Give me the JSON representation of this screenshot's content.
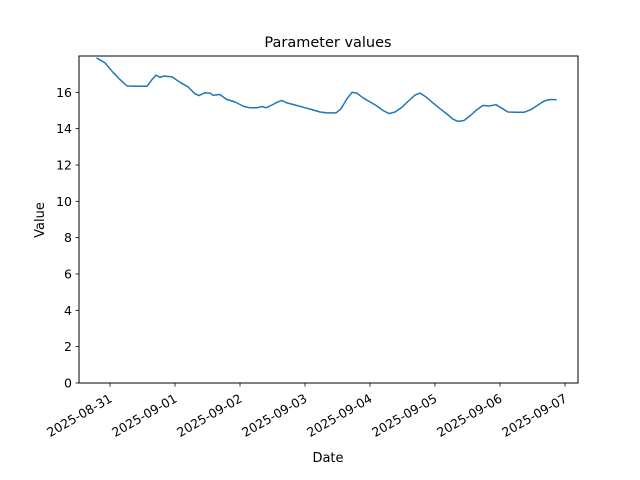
{
  "figure": {
    "background": "#ffffff",
    "axes_facecolor": "#ffffff",
    "spine_color": "#000000"
  },
  "chart_data": {
    "type": "line",
    "title": "Parameter values",
    "xlabel": "Date",
    "ylabel": "Value",
    "line_color": "#1f77b4",
    "grid": false,
    "legend_position": "none",
    "x_tick_labels": [
      "2025-08-31",
      "2025-09-01",
      "2025-09-02",
      "2025-09-03",
      "2025-09-04",
      "2025-09-05",
      "2025-09-06",
      "2025-09-07"
    ],
    "x_tick_rotation_deg": 30,
    "y_ticks": [
      0,
      2,
      4,
      6,
      8,
      10,
      12,
      14,
      16
    ],
    "ylim": [
      0,
      18
    ],
    "xlim_days": [
      -0.477,
      7.2
    ],
    "series": [
      {
        "name": "Parameter values",
        "x_unit": "days since 2025-08-31",
        "points": [
          [
            -0.2,
            17.88
          ],
          [
            -0.077,
            17.62
          ],
          [
            0.046,
            17.1
          ],
          [
            0.154,
            16.7
          ],
          [
            0.262,
            16.35
          ],
          [
            0.385,
            16.33
          ],
          [
            0.569,
            16.33
          ],
          [
            0.646,
            16.7
          ],
          [
            0.708,
            16.95
          ],
          [
            0.769,
            16.82
          ],
          [
            0.831,
            16.9
          ],
          [
            0.954,
            16.85
          ],
          [
            1.077,
            16.55
          ],
          [
            1.2,
            16.3
          ],
          [
            1.308,
            15.92
          ],
          [
            1.369,
            15.82
          ],
          [
            1.462,
            15.98
          ],
          [
            1.538,
            15.96
          ],
          [
            1.585,
            15.84
          ],
          [
            1.692,
            15.88
          ],
          [
            1.785,
            15.63
          ],
          [
            1.923,
            15.47
          ],
          [
            2.062,
            15.22
          ],
          [
            2.154,
            15.15
          ],
          [
            2.262,
            15.15
          ],
          [
            2.338,
            15.22
          ],
          [
            2.4,
            15.15
          ],
          [
            2.492,
            15.3
          ],
          [
            2.585,
            15.48
          ],
          [
            2.646,
            15.55
          ],
          [
            2.723,
            15.42
          ],
          [
            2.846,
            15.3
          ],
          [
            2.969,
            15.18
          ],
          [
            3.108,
            15.05
          ],
          [
            3.231,
            14.92
          ],
          [
            3.338,
            14.87
          ],
          [
            3.477,
            14.87
          ],
          [
            3.554,
            15.1
          ],
          [
            3.646,
            15.65
          ],
          [
            3.723,
            16.0
          ],
          [
            3.8,
            15.95
          ],
          [
            3.892,
            15.7
          ],
          [
            3.985,
            15.5
          ],
          [
            4.092,
            15.28
          ],
          [
            4.2,
            15.0
          ],
          [
            4.292,
            14.83
          ],
          [
            4.385,
            14.92
          ],
          [
            4.492,
            15.18
          ],
          [
            4.6,
            15.55
          ],
          [
            4.692,
            15.85
          ],
          [
            4.769,
            15.96
          ],
          [
            4.862,
            15.75
          ],
          [
            4.969,
            15.42
          ],
          [
            5.077,
            15.1
          ],
          [
            5.185,
            14.8
          ],
          [
            5.277,
            14.52
          ],
          [
            5.354,
            14.4
          ],
          [
            5.446,
            14.45
          ],
          [
            5.554,
            14.75
          ],
          [
            5.646,
            15.05
          ],
          [
            5.738,
            15.28
          ],
          [
            5.831,
            15.25
          ],
          [
            5.938,
            15.32
          ],
          [
            6.031,
            15.12
          ],
          [
            6.123,
            14.92
          ],
          [
            6.246,
            14.9
          ],
          [
            6.369,
            14.9
          ],
          [
            6.477,
            15.05
          ],
          [
            6.585,
            15.3
          ],
          [
            6.677,
            15.52
          ],
          [
            6.754,
            15.6
          ],
          [
            6.862,
            15.6
          ]
        ]
      }
    ]
  }
}
